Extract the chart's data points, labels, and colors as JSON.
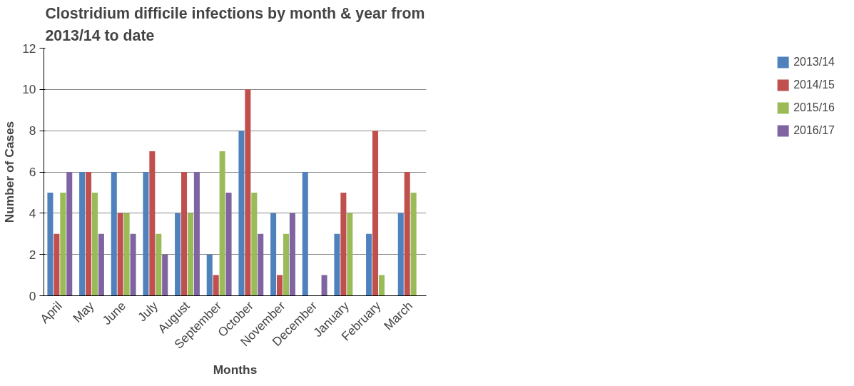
{
  "chart_data": {
    "type": "bar",
    "title": "Clostridium difficile infections by month & year from 2013/14 to date",
    "xlabel": "Months",
    "ylabel": "Number of Cases",
    "categories": [
      "April",
      "May",
      "June",
      "July",
      "August",
      "September",
      "October",
      "November",
      "December",
      "January",
      "February",
      "March"
    ],
    "series": [
      {
        "name": "2013/14",
        "color": "#4f81bd",
        "values": [
          5,
          6,
          6,
          6,
          4,
          2,
          8,
          4,
          6,
          3,
          3,
          4
        ]
      },
      {
        "name": "2014/15",
        "color": "#c0504d",
        "values": [
          3,
          6,
          4,
          7,
          6,
          1,
          10,
          1,
          0,
          5,
          8,
          6
        ]
      },
      {
        "name": "2015/16",
        "color": "#9bbb59",
        "values": [
          5,
          5,
          4,
          3,
          4,
          7,
          5,
          3,
          0,
          4,
          1,
          5
        ]
      },
      {
        "name": "2016/17",
        "color": "#8064a2",
        "values": [
          6,
          3,
          3,
          2,
          6,
          5,
          3,
          4,
          1,
          null,
          null,
          null
        ]
      }
    ],
    "ylim": [
      0,
      12
    ],
    "yticks": [
      0,
      2,
      4,
      6,
      8,
      10,
      12
    ],
    "grid": "y",
    "legend": "right"
  }
}
